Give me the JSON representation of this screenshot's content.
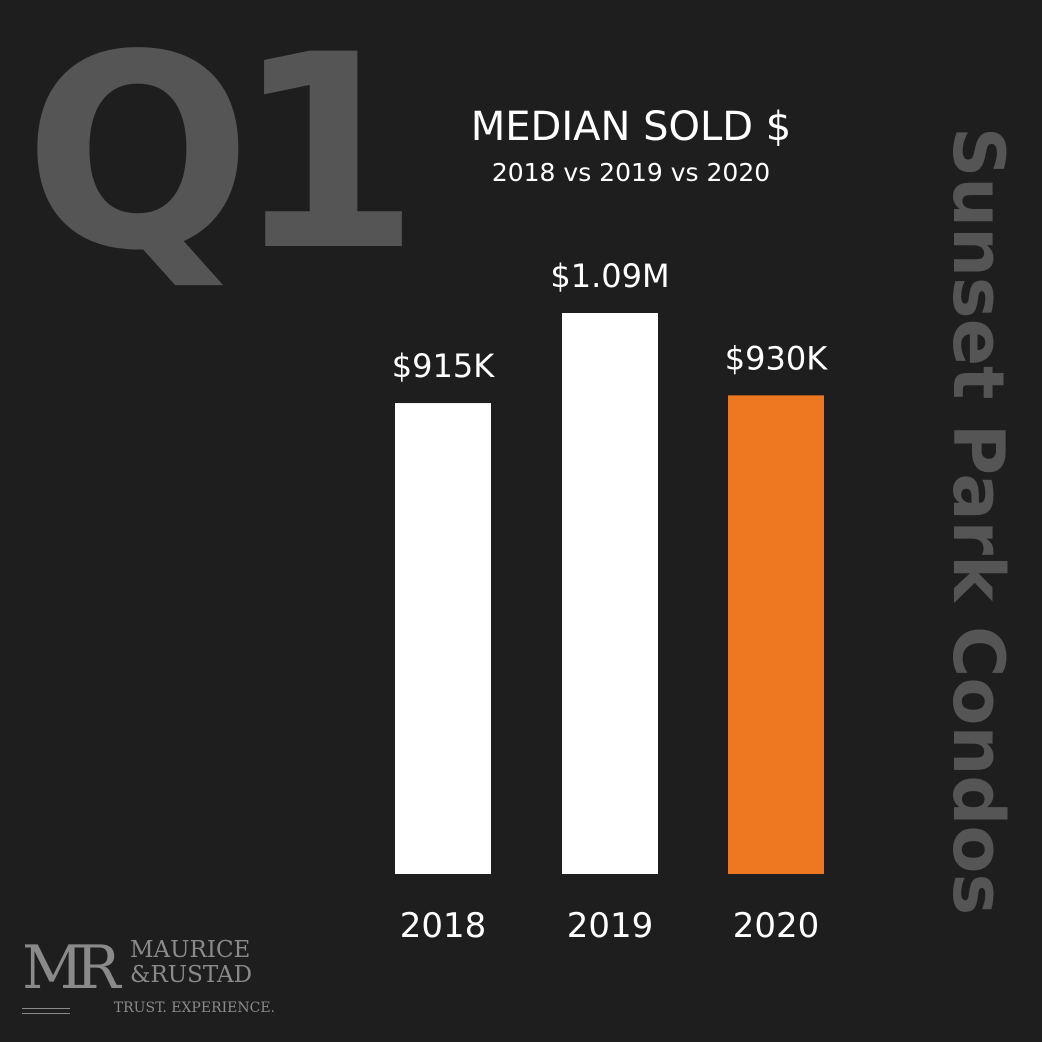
{
  "header": {
    "quarter": "Q1",
    "side_title": "Sunset Park Condos"
  },
  "chart_data": {
    "type": "bar",
    "title": "MEDIAN SOLD $",
    "subtitle": "2018 vs 2019 vs 2020",
    "categories": [
      "2018",
      "2019",
      "2020"
    ],
    "values": [
      915000,
      1090000,
      930000
    ],
    "data_labels": [
      "$915K",
      "$1.09M",
      "$930K"
    ],
    "colors": [
      "#ffffff",
      "#ffffff",
      "#ee7722"
    ],
    "ylim": [
      0,
      1090000
    ],
    "grid": false,
    "axes_visible": false
  },
  "logo": {
    "mark": "MR",
    "name_line1": "MAURICE",
    "name_line2": "&RUSTAD",
    "tagline": "TRUST. EXPERIENCE."
  },
  "colors": {
    "background": "#1e1e1e",
    "muted_text": "#555555",
    "highlight": "#ee7722"
  }
}
